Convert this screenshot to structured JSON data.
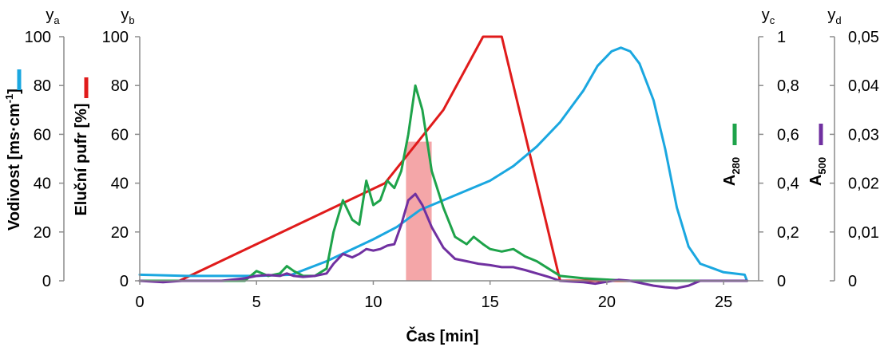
{
  "chart_data": {
    "type": "line",
    "xlabel": "Čas [min]",
    "xlim": [
      0,
      26.5
    ],
    "x_ticks": [
      "0",
      "5",
      "10",
      "15",
      "20",
      "25"
    ],
    "highlight": {
      "from": 11.4,
      "to": 12.5,
      "color": "#f4a6a8"
    },
    "axes": {
      "ya": {
        "label": "y",
        "sub": "a",
        "title": "Vodivost [ms·cm",
        "title_sup": "-1",
        "title_end": "]",
        "ylim": [
          0,
          100
        ],
        "ticks": [
          "0",
          "20",
          "40",
          "60",
          "80",
          "100"
        ],
        "color": "#1aa7e0"
      },
      "yb": {
        "label": "y",
        "sub": "b",
        "title": "Eluční pufr [%]",
        "ylim": [
          0,
          100
        ],
        "ticks": [
          "0",
          "20",
          "40",
          "60",
          "80",
          "100"
        ],
        "color": "#e01b1b"
      },
      "yc": {
        "label": "y",
        "sub": "c",
        "title": "A",
        "title_sub": "280",
        "ylim": [
          0,
          1
        ],
        "ticks": [
          "0",
          "0,2",
          "0,4",
          "0,6",
          "0,8",
          "1"
        ],
        "color": "#1ea34a"
      },
      "yd": {
        "label": "y",
        "sub": "d",
        "title": "A",
        "title_sub": "500",
        "ylim": [
          0,
          0.05
        ],
        "ticks": [
          "0",
          "0,01",
          "0,02",
          "0,03",
          "0,04",
          "0,05"
        ],
        "color": "#7030a0"
      }
    },
    "series": [
      {
        "axis": "yb",
        "color": "#e01b1b",
        "x": [
          0,
          1.7,
          10.5,
          13,
          14.7,
          15.5,
          18,
          26
        ],
        "y": [
          0,
          0,
          40,
          70,
          100,
          100,
          0,
          0
        ]
      },
      {
        "axis": "ya",
        "color": "#1aa7e0",
        "x": [
          0,
          2,
          5,
          6.5,
          8,
          10,
          11,
          12,
          13,
          14,
          15,
          16,
          17,
          18,
          19,
          19.6,
          20.2,
          20.6,
          21,
          21.4,
          22,
          22.5,
          23,
          23.5,
          24,
          25,
          25.9,
          26
        ],
        "y": [
          2.5,
          2,
          2,
          2.5,
          8,
          17,
          22,
          29,
          33,
          37,
          41,
          47,
          55,
          65,
          78,
          88,
          94,
          95.5,
          94,
          89,
          74,
          54,
          30,
          14,
          7,
          3.5,
          2.5,
          0
        ]
      },
      {
        "axis": "yc",
        "color": "#1ea34a",
        "x": [
          0,
          4.5,
          5,
          5.5,
          6,
          6.3,
          6.6,
          7,
          7.5,
          8,
          8.3,
          8.7,
          9.1,
          9.4,
          9.7,
          10,
          10.3,
          10.6,
          10.9,
          11.2,
          11.5,
          11.8,
          12.1,
          12.5,
          13,
          13.5,
          14,
          14.3,
          14.7,
          15,
          15.5,
          16,
          16.5,
          17,
          17.5,
          18,
          19,
          20,
          21,
          22,
          23,
          24,
          25,
          26
        ],
        "y": [
          0,
          0,
          0.04,
          0.02,
          0.03,
          0.06,
          0.04,
          0.02,
          0.02,
          0.05,
          0.2,
          0.33,
          0.25,
          0.23,
          0.41,
          0.31,
          0.33,
          0.41,
          0.38,
          0.45,
          0.6,
          0.8,
          0.7,
          0.45,
          0.3,
          0.18,
          0.15,
          0.18,
          0.15,
          0.13,
          0.12,
          0.13,
          0.1,
          0.08,
          0.05,
          0.02,
          0.01,
          0.005,
          0,
          0,
          0,
          0,
          0,
          0
        ]
      },
      {
        "axis": "yd",
        "color": "#7030a0",
        "x": [
          0,
          1,
          1.8,
          3.5,
          4.5,
          5,
          5.5,
          6,
          6.3,
          6.6,
          7,
          7.5,
          8,
          8.3,
          8.7,
          9.1,
          9.4,
          9.7,
          10,
          10.3,
          10.6,
          10.9,
          11.2,
          11.5,
          11.8,
          12.1,
          12.5,
          13,
          13.5,
          14,
          14.5,
          15,
          15.5,
          16,
          16.5,
          17,
          17.5,
          18,
          19,
          19.5,
          20,
          20.5,
          21,
          21.5,
          22,
          22.5,
          23,
          23.5,
          24,
          25,
          26
        ],
        "y": [
          0,
          -0.0003,
          0,
          0,
          0.0005,
          0.001,
          0.0012,
          0.001,
          0.0015,
          0.001,
          0.0008,
          0.001,
          0.0015,
          0.0035,
          0.0055,
          0.0048,
          0.0055,
          0.0065,
          0.0062,
          0.0065,
          0.0072,
          0.0075,
          0.0115,
          0.0165,
          0.0178,
          0.0155,
          0.011,
          0.0068,
          0.0045,
          0.004,
          0.0035,
          0.0032,
          0.0028,
          0.0028,
          0.0022,
          0.0015,
          0.0008,
          0,
          -0.0003,
          -0.0006,
          -0.0002,
          0.0002,
          0,
          -0.0005,
          -0.001,
          -0.0013,
          -0.0015,
          -0.001,
          0,
          0,
          0
        ]
      }
    ]
  }
}
